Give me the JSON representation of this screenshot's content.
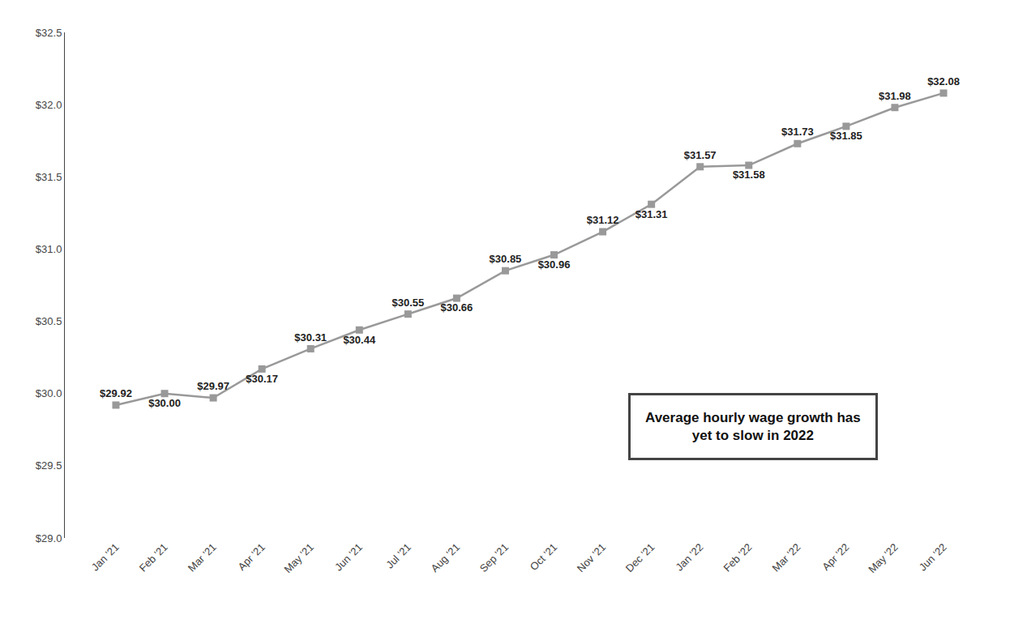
{
  "chart_data": {
    "type": "line",
    "categories": [
      "Jan '21",
      "Feb '21",
      "Mar '21",
      "Apr '21",
      "May '21",
      "Jun '21",
      "Jul '21",
      "Aug '21",
      "Sep '21",
      "Oct '21",
      "Nov '21",
      "Dec '21",
      "Jan '22",
      "Feb '22",
      "Mar '22",
      "Apr '22",
      "May '22",
      "Jun '22"
    ],
    "values": [
      29.92,
      30.0,
      29.97,
      30.17,
      30.31,
      30.44,
      30.55,
      30.66,
      30.85,
      30.96,
      31.12,
      31.31,
      31.57,
      31.58,
      31.73,
      31.85,
      31.98,
      32.08
    ],
    "value_labels": [
      "$29.92",
      "$30.00",
      "$29.97",
      "$30.17",
      "$30.31",
      "$30.44",
      "$30.55",
      "$30.66",
      "$30.85",
      "$30.96",
      "$31.12",
      "$31.31",
      "$31.57",
      "$31.58",
      "$31.73",
      "$31.85",
      "$31.98",
      "$32.08"
    ],
    "data_labels": true,
    "color": "#999999",
    "marker": "square",
    "ylim": [
      29.0,
      32.5
    ],
    "yticks": [
      {
        "value": 29.0,
        "label": "$29.0"
      },
      {
        "value": 29.5,
        "label": "$29.5"
      },
      {
        "value": 30.0,
        "label": "$30.0"
      },
      {
        "value": 30.5,
        "label": "$30.5"
      },
      {
        "value": 31.0,
        "label": "$31.0"
      },
      {
        "value": 31.5,
        "label": "$31.5"
      },
      {
        "value": 32.0,
        "label": "$32.0"
      },
      {
        "value": 32.5,
        "label": "$32.5"
      }
    ],
    "grid": false,
    "annotations": [
      "Average hourly wage growth has\nyet to slow in 2022"
    ]
  }
}
